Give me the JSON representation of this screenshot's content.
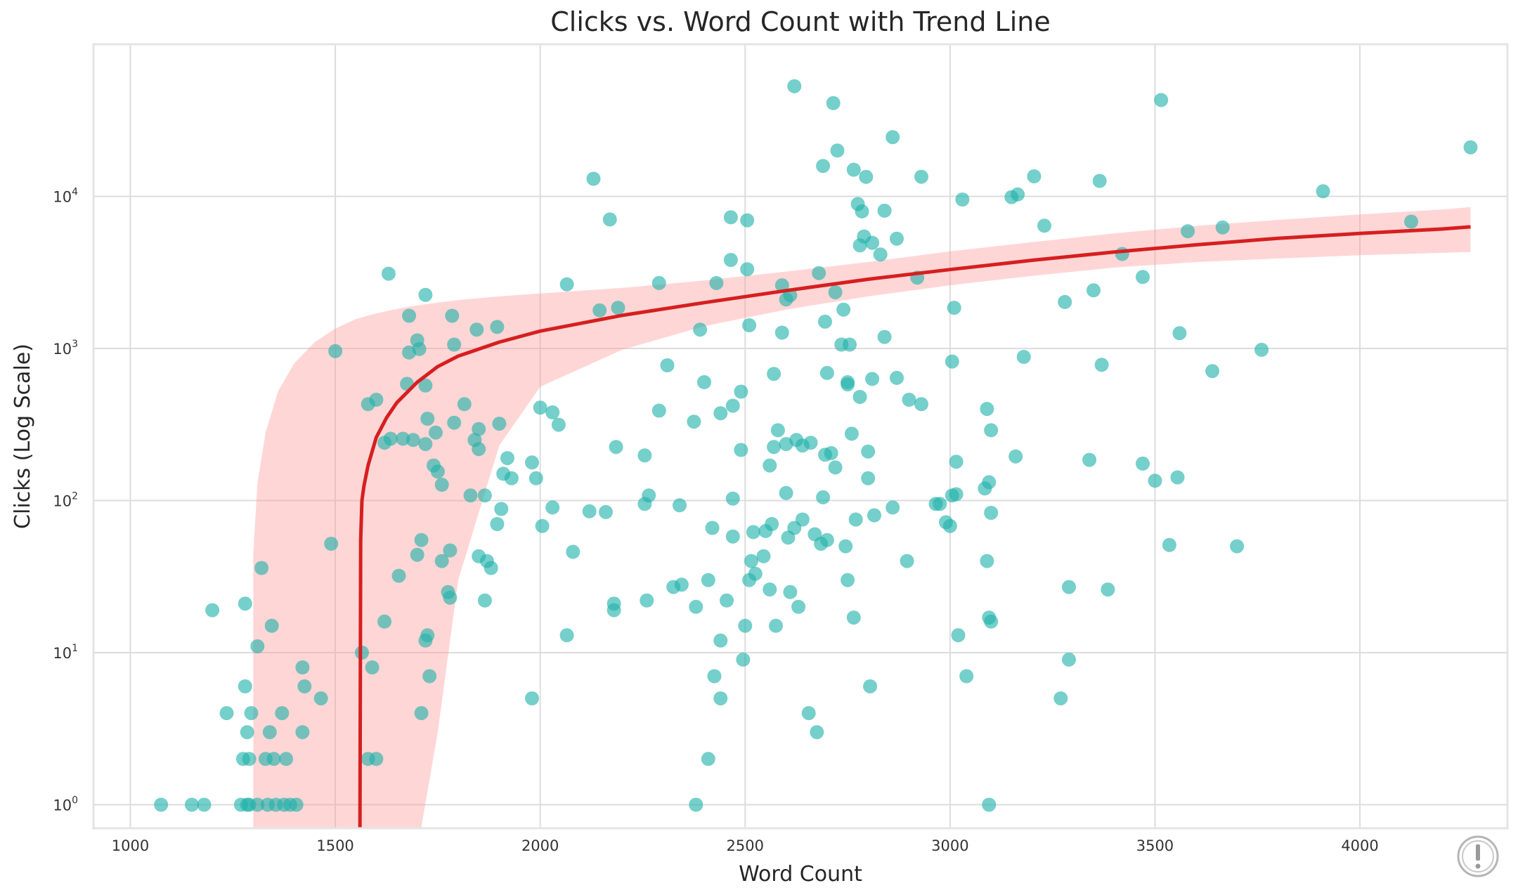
{
  "chart_data": {
    "type": "scatter",
    "title": "Clicks vs. Word Count with Trend Line",
    "xlabel": "Word Count",
    "ylabel": "Clicks (Log Scale)",
    "xlim": [
      910,
      4360
    ],
    "ylim": [
      0.7,
      100000
    ],
    "yscale": "log",
    "grid": true,
    "legend": "none",
    "xticks": [
      1000,
      1500,
      2000,
      2500,
      3000,
      3500,
      4000
    ],
    "xtick_labels": [
      "1000",
      "1500",
      "2000",
      "2500",
      "3000",
      "3500",
      "4000"
    ],
    "yticks": [
      1,
      10,
      100,
      1000,
      10000
    ],
    "ytick_labels": [
      {
        "base": "10",
        "exp": "0"
      },
      {
        "base": "10",
        "exp": "1"
      },
      {
        "base": "10",
        "exp": "2"
      },
      {
        "base": "10",
        "exp": "3"
      },
      {
        "base": "10",
        "exp": "4"
      }
    ],
    "colors": {
      "points": "#20b2aa",
      "trend": "#d61f1f",
      "band": "#ff9999"
    },
    "series": [
      {
        "kind": "scatter",
        "points": [
          [
            1075,
            1
          ],
          [
            1150,
            1
          ],
          [
            1180,
            1
          ],
          [
            1270,
            1
          ],
          [
            1285,
            1
          ],
          [
            1290,
            1
          ],
          [
            1310,
            1
          ],
          [
            1335,
            1
          ],
          [
            1355,
            1
          ],
          [
            1375,
            1
          ],
          [
            1390,
            1
          ],
          [
            1405,
            1
          ],
          [
            2380,
            1
          ],
          [
            3095,
            1
          ],
          [
            1275,
            2
          ],
          [
            1290,
            2
          ],
          [
            1330,
            2
          ],
          [
            1350,
            2
          ],
          [
            1380,
            2
          ],
          [
            1580,
            2
          ],
          [
            1600,
            2
          ],
          [
            2410,
            2
          ],
          [
            1285,
            3
          ],
          [
            1340,
            3
          ],
          [
            1420,
            3
          ],
          [
            2675,
            3
          ],
          [
            1235,
            4
          ],
          [
            1295,
            4
          ],
          [
            1370,
            4
          ],
          [
            1710,
            4
          ],
          [
            2655,
            4
          ],
          [
            1280,
            6
          ],
          [
            1425,
            6
          ],
          [
            1465,
            5
          ],
          [
            1980,
            5
          ],
          [
            2440,
            5
          ],
          [
            3270,
            5
          ],
          [
            1720,
            12
          ],
          [
            1590,
            8
          ],
          [
            1730,
            7
          ],
          [
            1565,
            10
          ],
          [
            1420,
            8
          ],
          [
            2425,
            7
          ],
          [
            2495,
            9
          ],
          [
            2805,
            6
          ],
          [
            3040,
            7
          ],
          [
            3290,
            9
          ],
          [
            1310,
            11
          ],
          [
            1345,
            15
          ],
          [
            1620,
            16
          ],
          [
            1725,
            13
          ],
          [
            2440,
            12
          ],
          [
            2500,
            15
          ],
          [
            2575,
            15
          ],
          [
            2630,
            20
          ],
          [
            2065,
            13
          ],
          [
            2180,
            21
          ],
          [
            2180,
            19
          ],
          [
            2765,
            17
          ],
          [
            3020,
            13
          ],
          [
            3095,
            17
          ],
          [
            3100,
            16
          ],
          [
            1200,
            19
          ],
          [
            1280,
            21
          ],
          [
            1320,
            36
          ],
          [
            1655,
            32
          ],
          [
            1775,
            25
          ],
          [
            1780,
            23
          ],
          [
            1865,
            22
          ],
          [
            1870,
            40
          ],
          [
            1880,
            36
          ],
          [
            1760,
            40
          ],
          [
            1700,
            44
          ],
          [
            1850,
            43
          ],
          [
            2260,
            22
          ],
          [
            2325,
            27
          ],
          [
            2345,
            28
          ],
          [
            2380,
            20
          ],
          [
            2410,
            30
          ],
          [
            2455,
            22
          ],
          [
            2510,
            30
          ],
          [
            2525,
            33
          ],
          [
            2545,
            43
          ],
          [
            2560,
            26
          ],
          [
            2610,
            25
          ],
          [
            2750,
            30
          ],
          [
            2895,
            40
          ],
          [
            3090,
            40
          ],
          [
            3290,
            27
          ],
          [
            3385,
            26
          ],
          [
            1490,
            52
          ],
          [
            1710,
            55
          ],
          [
            1780,
            47
          ],
          [
            2080,
            46
          ],
          [
            2420,
            66
          ],
          [
            2470,
            58
          ],
          [
            2515,
            40
          ],
          [
            2520,
            62
          ],
          [
            2550,
            63
          ],
          [
            2565,
            70
          ],
          [
            2605,
            57
          ],
          [
            2620,
            66
          ],
          [
            2640,
            75
          ],
          [
            2670,
            60
          ],
          [
            2685,
            52
          ],
          [
            2700,
            55
          ],
          [
            2745,
            50
          ],
          [
            2770,
            75
          ],
          [
            2815,
            80
          ],
          [
            2860,
            90
          ],
          [
            2965,
            95
          ],
          [
            2975,
            95
          ],
          [
            2990,
            72
          ],
          [
            3000,
            68
          ],
          [
            3100,
            83
          ],
          [
            3535,
            51
          ],
          [
            3700,
            50
          ],
          [
            1830,
            108
          ],
          [
            1865,
            108
          ],
          [
            1895,
            70
          ],
          [
            1905,
            88
          ],
          [
            1910,
            150
          ],
          [
            1930,
            140
          ],
          [
            1990,
            140
          ],
          [
            2005,
            68
          ],
          [
            2030,
            90
          ],
          [
            2120,
            85
          ],
          [
            2160,
            84
          ],
          [
            2255,
            95
          ],
          [
            2265,
            108
          ],
          [
            2340,
            93
          ],
          [
            2470,
            103
          ],
          [
            2600,
            112
          ],
          [
            2690,
            105
          ],
          [
            2800,
            140
          ],
          [
            3005,
            108
          ],
          [
            3015,
            110
          ],
          [
            3085,
            120
          ],
          [
            3095,
            132
          ],
          [
            3500,
            135
          ],
          [
            3555,
            142
          ],
          [
            1665,
            255
          ],
          [
            1690,
            250
          ],
          [
            1720,
            235
          ],
          [
            1740,
            170
          ],
          [
            1750,
            155
          ],
          [
            1760,
            127
          ],
          [
            1790,
            325
          ],
          [
            1840,
            250
          ],
          [
            1850,
            218
          ],
          [
            1850,
            295
          ],
          [
            1900,
            320
          ],
          [
            1920,
            190
          ],
          [
            1980,
            178
          ],
          [
            2000,
            408
          ],
          [
            2030,
            380
          ],
          [
            2045,
            315
          ],
          [
            2185,
            225
          ],
          [
            2255,
            198
          ],
          [
            2290,
            390
          ],
          [
            2375,
            330
          ],
          [
            2440,
            375
          ],
          [
            2470,
            420
          ],
          [
            2490,
            215
          ],
          [
            2560,
            170
          ],
          [
            2570,
            225
          ],
          [
            2580,
            290
          ],
          [
            2600,
            235
          ],
          [
            2625,
            250
          ],
          [
            2640,
            230
          ],
          [
            2660,
            240
          ],
          [
            2695,
            200
          ],
          [
            2710,
            205
          ],
          [
            2720,
            165
          ],
          [
            2750,
            600
          ],
          [
            2760,
            275
          ],
          [
            2780,
            480
          ],
          [
            2800,
            210
          ],
          [
            2870,
            640
          ],
          [
            2900,
            460
          ],
          [
            2930,
            430
          ],
          [
            3005,
            820
          ],
          [
            3015,
            180
          ],
          [
            3090,
            400
          ],
          [
            3100,
            290
          ],
          [
            3160,
            195
          ],
          [
            3340,
            185
          ],
          [
            3470,
            175
          ],
          [
            1580,
            430
          ],
          [
            1600,
            460
          ],
          [
            1620,
            240
          ],
          [
            1635,
            255
          ],
          [
            1675,
            585
          ],
          [
            1705,
            990
          ],
          [
            1720,
            570
          ],
          [
            1725,
            345
          ],
          [
            1745,
            280
          ],
          [
            1790,
            1060
          ],
          [
            1815,
            430
          ],
          [
            1845,
            1330
          ],
          [
            1895,
            1385
          ],
          [
            2310,
            775
          ],
          [
            2390,
            1330
          ],
          [
            2400,
            600
          ],
          [
            2490,
            520
          ],
          [
            2510,
            1420
          ],
          [
            2570,
            680
          ],
          [
            2590,
            1270
          ],
          [
            2695,
            1500
          ],
          [
            2700,
            690
          ],
          [
            2735,
            1060
          ],
          [
            2750,
            580
          ],
          [
            2755,
            1060
          ],
          [
            2810,
            630
          ],
          [
            2840,
            1190
          ],
          [
            3010,
            1850
          ],
          [
            3180,
            880
          ],
          [
            3370,
            780
          ],
          [
            3560,
            1260
          ],
          [
            3640,
            710
          ],
          [
            3760,
            980
          ],
          [
            1500,
            960
          ],
          [
            1680,
            940
          ],
          [
            1700,
            1130
          ],
          [
            1630,
            3100
          ],
          [
            1680,
            1640
          ],
          [
            1720,
            2250
          ],
          [
            1785,
            1640
          ],
          [
            2065,
            2640
          ],
          [
            2145,
            1780
          ],
          [
            2190,
            1850
          ],
          [
            2290,
            2690
          ],
          [
            2430,
            2690
          ],
          [
            2465,
            3820
          ],
          [
            2505,
            3320
          ],
          [
            2590,
            2600
          ],
          [
            2600,
            2100
          ],
          [
            2610,
            2240
          ],
          [
            2680,
            3130
          ],
          [
            2720,
            2340
          ],
          [
            2740,
            1800
          ],
          [
            2830,
            4150
          ],
          [
            2870,
            5270
          ],
          [
            2920,
            2920
          ],
          [
            3280,
            2020
          ],
          [
            3350,
            2410
          ],
          [
            3420,
            4180
          ],
          [
            3470,
            2950
          ],
          [
            2790,
            5450
          ],
          [
            2810,
            4950
          ],
          [
            2780,
            4760
          ],
          [
            2130,
            13050
          ],
          [
            2170,
            7050
          ],
          [
            2465,
            7280
          ],
          [
            2505,
            6960
          ],
          [
            2690,
            15850
          ],
          [
            2765,
            14960
          ],
          [
            2775,
            8900
          ],
          [
            2785,
            7960
          ],
          [
            2795,
            13420
          ],
          [
            2840,
            8050
          ],
          [
            2860,
            24500
          ],
          [
            2930,
            13460
          ],
          [
            3030,
            9530
          ],
          [
            3150,
            9880
          ],
          [
            3165,
            10290
          ],
          [
            3205,
            13540
          ],
          [
            3230,
            6410
          ],
          [
            3365,
            12640
          ],
          [
            3580,
            5900
          ],
          [
            3665,
            6240
          ],
          [
            3910,
            10800
          ],
          [
            4125,
            6820
          ],
          [
            4270,
            21000
          ],
          [
            2620,
            53000
          ],
          [
            2715,
            41000
          ],
          [
            3515,
            43000
          ],
          [
            2725,
            20000
          ]
        ]
      },
      {
        "kind": "trend",
        "name": "",
        "x": [
          1560,
          1562,
          1565,
          1570,
          1580,
          1600,
          1625,
          1650,
          1700,
          1750,
          1800,
          1900,
          2000,
          2200,
          2400,
          2600,
          2800,
          3000,
          3200,
          3400,
          3600,
          3800,
          4000,
          4200,
          4270
        ],
        "y": [
          0.5,
          55,
          100,
          125,
          170,
          260,
          350,
          440,
          600,
          760,
          890,
          1100,
          1300,
          1650,
          2000,
          2400,
          2850,
          3300,
          3800,
          4300,
          4800,
          5300,
          5700,
          6100,
          6300
        ]
      },
      {
        "kind": "confidence_band",
        "x": [
          1300,
          1310,
          1330,
          1360,
          1400,
          1450,
          1500,
          1550,
          1600,
          1650,
          1700,
          1750,
          1800,
          1900,
          2000,
          2200,
          2400,
          2600,
          2800,
          3000,
          3200,
          3400,
          3600,
          3800,
          4000,
          4200,
          4270
        ],
        "lower": [
          0.5,
          0.5,
          0.5,
          0.5,
          0.5,
          0.5,
          0.5,
          0.5,
          0.5,
          0.5,
          0.5,
          3,
          30,
          230,
          560,
          980,
          1400,
          1800,
          2200,
          2600,
          3000,
          3400,
          3700,
          3900,
          4100,
          4250,
          4300
        ],
        "upper": [
          45,
          130,
          280,
          520,
          800,
          1100,
          1350,
          1560,
          1700,
          1820,
          1920,
          2000,
          2080,
          2200,
          2300,
          2500,
          2800,
          3200,
          3700,
          4350,
          5000,
          5700,
          6400,
          7000,
          7600,
          8200,
          8500
        ]
      }
    ]
  }
}
